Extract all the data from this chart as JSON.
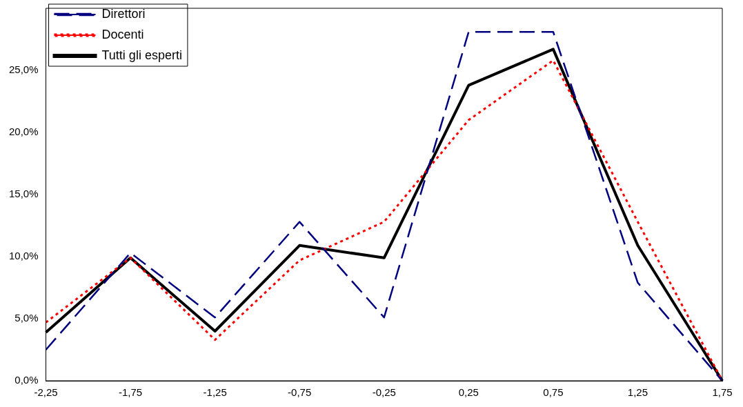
{
  "chart_data": {
    "type": "line",
    "categories": [
      "-2,25",
      "-1,75",
      "-1,25",
      "-0,75",
      "-0,25",
      "0,25",
      "0,75",
      "1,25",
      "1,75"
    ],
    "series": [
      {
        "name": "Direttori",
        "color": "#000080",
        "line_style": "dashed",
        "values": [
          2.5,
          10.3,
          5.1,
          12.8,
          5.1,
          28.1,
          28.1,
          7.9,
          0
        ]
      },
      {
        "name": "Docenti",
        "color": "#ff0000",
        "line_style": "dotted",
        "values": [
          4.7,
          9.9,
          3.3,
          9.7,
          12.8,
          21.0,
          25.8,
          12.8,
          0
        ]
      },
      {
        "name": "Tutti gli esperti",
        "color": "#000000",
        "line_style": "solid",
        "values": [
          3.9,
          9.9,
          4.0,
          10.9,
          9.9,
          23.8,
          26.7,
          10.9,
          0
        ]
      }
    ],
    "ylim": [
      0,
      30
    ],
    "yticks": [
      {
        "value": 0,
        "label": "0,0%"
      },
      {
        "value": 5,
        "label": "5,0%"
      },
      {
        "value": 10,
        "label": "10,0%"
      },
      {
        "value": 15,
        "label": "15,0%"
      },
      {
        "value": 20,
        "label": "20,0%"
      },
      {
        "value": 25,
        "label": "25,0%"
      }
    ],
    "grid": false,
    "legend": "top left",
    "marker": "none"
  }
}
